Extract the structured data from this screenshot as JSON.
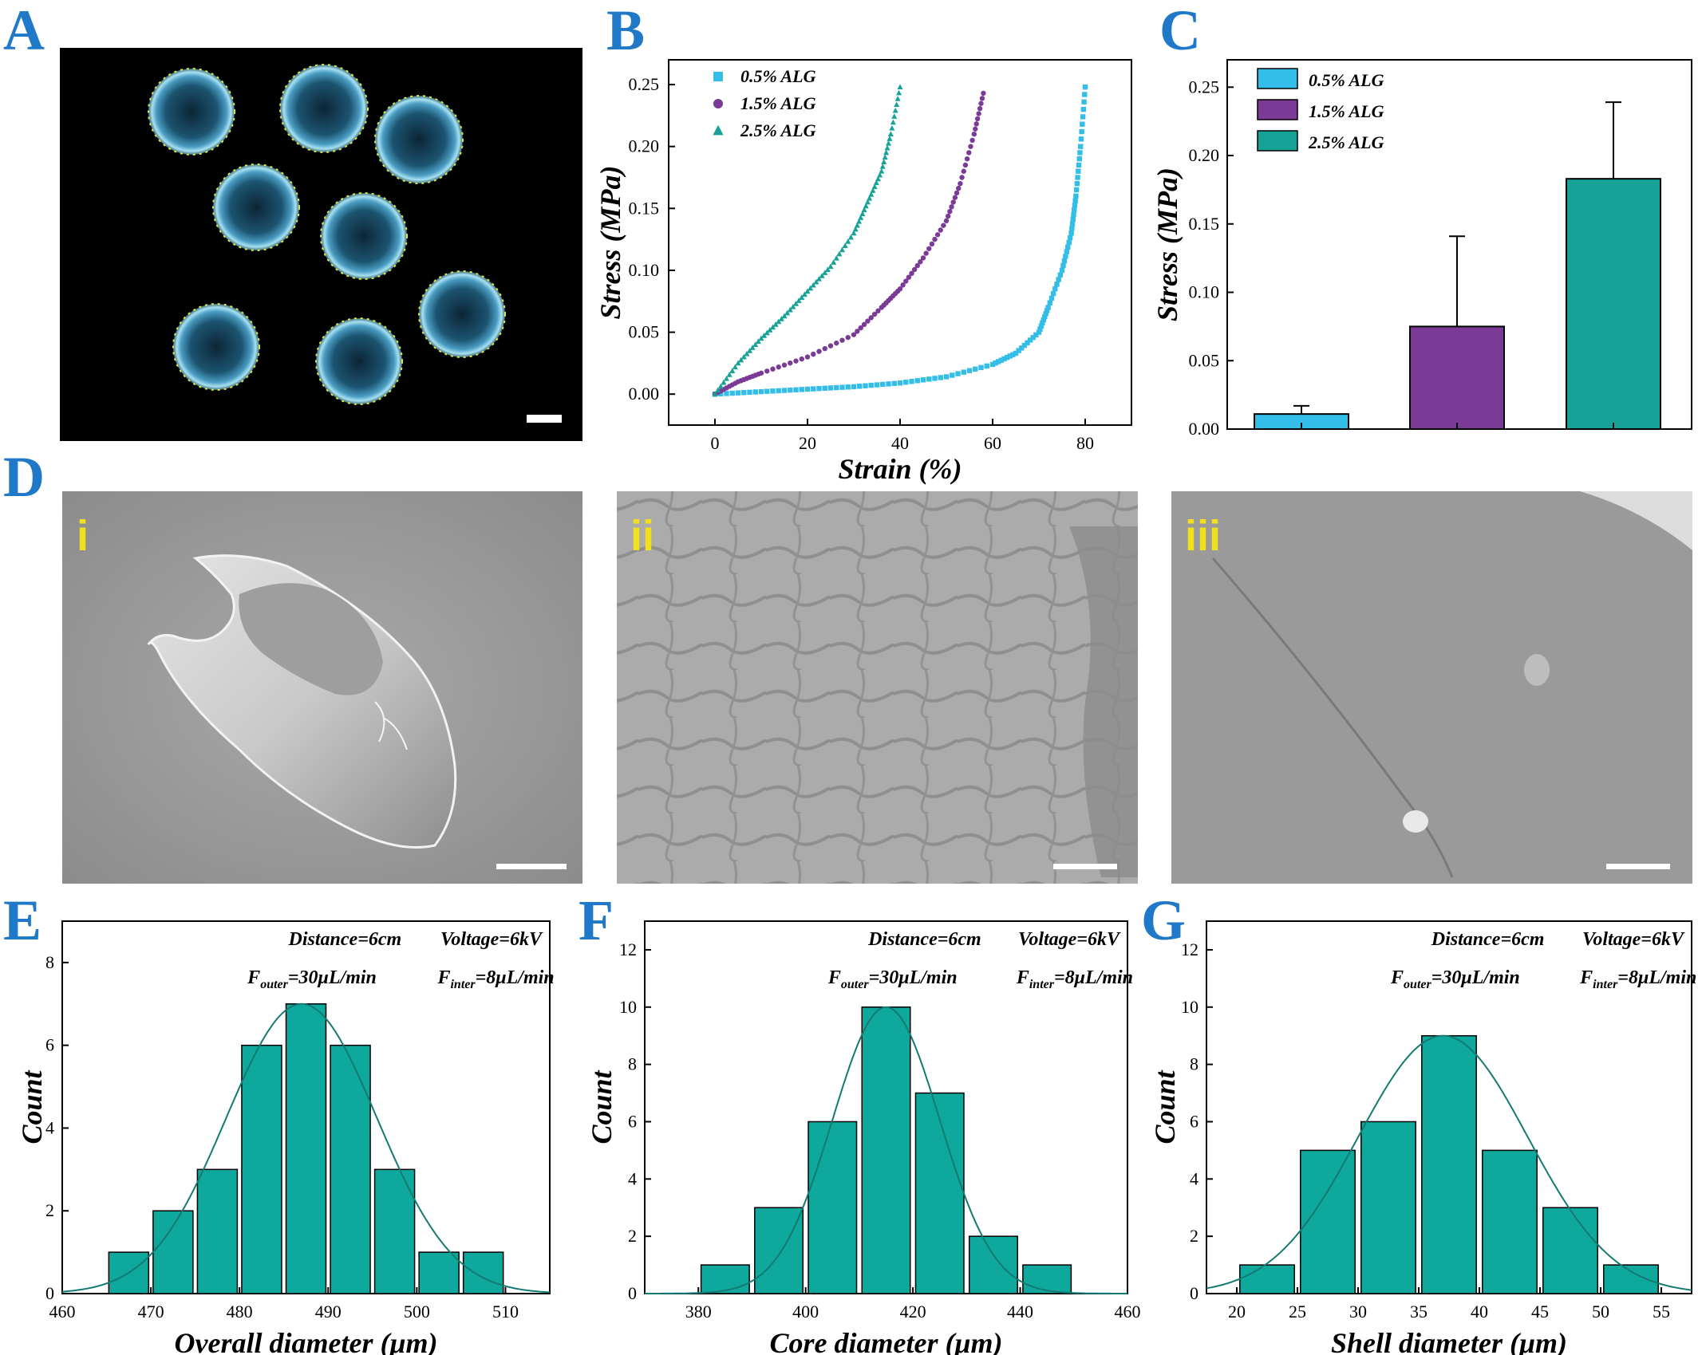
{
  "panels": {
    "A": "A",
    "B": "B",
    "C": "C",
    "D": "D",
    "E": "E",
    "F": "F",
    "G": "G"
  },
  "sem_labels": [
    "i",
    "ii",
    "iii"
  ],
  "colors": {
    "c05": "#33bde9",
    "c15": "#7b3a96",
    "c25": "#16a296",
    "hist": "#0fa89c",
    "curve": "#137a72",
    "letter": "#1f78c8",
    "sublabel": "#f1e11b"
  },
  "chart_data": [
    {
      "id": "B",
      "type": "scatter",
      "xlabel": "Strain (%)",
      "ylabel": "Stress (MPa)",
      "xlim": [
        -10,
        90
      ],
      "ylim": [
        -0.025,
        0.27
      ],
      "xticks": [
        0,
        20,
        40,
        60,
        80
      ],
      "yticks": [
        0.0,
        0.05,
        0.1,
        0.15,
        0.2,
        0.25
      ],
      "ytick_labels": [
        "0.00",
        "0.05",
        "0.10",
        "0.15",
        "0.20",
        "0.25"
      ],
      "legend_position": "top-left",
      "series": [
        {
          "name": "0.5% ALG",
          "marker": "square",
          "x": [
            0,
            10,
            20,
            30,
            40,
            50,
            60,
            65,
            70,
            72,
            75,
            77,
            78,
            79,
            80
          ],
          "y": [
            0,
            0.002,
            0.004,
            0.006,
            0.009,
            0.014,
            0.024,
            0.033,
            0.05,
            0.07,
            0.1,
            0.13,
            0.16,
            0.2,
            0.248
          ]
        },
        {
          "name": "1.5% ALG",
          "marker": "circle",
          "x": [
            0,
            5,
            10,
            20,
            30,
            36,
            40,
            45,
            50,
            53,
            56,
            58
          ],
          "y": [
            0,
            0.01,
            0.017,
            0.03,
            0.048,
            0.07,
            0.085,
            0.11,
            0.14,
            0.17,
            0.21,
            0.243
          ]
        },
        {
          "name": "2.5% ALG",
          "marker": "triangle",
          "x": [
            0,
            5,
            10,
            15,
            20,
            25,
            30,
            33,
            36,
            38,
            40
          ],
          "y": [
            0,
            0.025,
            0.045,
            0.063,
            0.083,
            0.103,
            0.13,
            0.155,
            0.18,
            0.21,
            0.248
          ]
        }
      ]
    },
    {
      "id": "C",
      "type": "bar",
      "ylabel": "Stress (MPa)",
      "ylim": [
        0,
        0.27
      ],
      "yticks": [
        0.0,
        0.05,
        0.1,
        0.15,
        0.2,
        0.25
      ],
      "ytick_labels": [
        "0.00",
        "0.05",
        "0.10",
        "0.15",
        "0.20",
        "0.25"
      ],
      "legend_position": "top-left",
      "categories": [
        "0.5% ALG",
        "1.5% ALG",
        "2.5% ALG"
      ],
      "values": [
        0.011,
        0.075,
        0.183
      ],
      "errors": [
        0.006,
        0.066,
        0.056
      ]
    },
    {
      "id": "E",
      "type": "bar",
      "xlabel": "Overall diameter (μm)",
      "ylabel": "Count",
      "xlim": [
        460,
        515
      ],
      "ylim": [
        0,
        9
      ],
      "xticks": [
        460,
        470,
        480,
        490,
        500,
        510
      ],
      "yticks": [
        0,
        2,
        4,
        6,
        8
      ],
      "bin_centers": [
        467.5,
        472.5,
        477.5,
        482.5,
        487.5,
        492.5,
        497.5,
        502.5,
        507.5
      ],
      "bin_width": 5,
      "values": [
        1,
        2,
        3,
        6,
        7,
        6,
        3,
        1,
        1
      ],
      "fit": {
        "mean": 487,
        "sd": 8.5,
        "peak": 7.0
      },
      "notes": {
        "distance": "Distance=6cm",
        "voltage": "Voltage=6kV",
        "f_outer_main": "F",
        "f_outer_sub": "outer",
        "f_outer_val": "=30μL/min",
        "f_inter_main": "F",
        "f_inter_sub": "inter",
        "f_inter_val": "=8μL/min"
      }
    },
    {
      "id": "F",
      "type": "bar",
      "xlabel": "Core diameter (μm)",
      "ylabel": "Count",
      "xlim": [
        370,
        460
      ],
      "ylim": [
        0,
        13
      ],
      "xticks": [
        380,
        400,
        420,
        440,
        460
      ],
      "yticks": [
        0,
        2,
        4,
        6,
        8,
        10,
        12
      ],
      "bin_centers": [
        385,
        395,
        405,
        415,
        425,
        435,
        445
      ],
      "bin_width": 10,
      "values": [
        1,
        3,
        6,
        10,
        7,
        2,
        1
      ],
      "fit": {
        "mean": 415,
        "sd": 10,
        "peak": 10
      },
      "notes": {
        "distance": "Distance=6cm",
        "voltage": "Voltage=6kV",
        "f_outer_main": "F",
        "f_outer_sub": "outer",
        "f_outer_val": "=30μL/min",
        "f_inter_main": "F",
        "f_inter_sub": "inter",
        "f_inter_val": "=8μL/min"
      }
    },
    {
      "id": "G",
      "type": "bar",
      "xlabel": "Shell diameter (μm)",
      "ylabel": "Count",
      "xlim": [
        17.5,
        57.5
      ],
      "ylim": [
        0,
        13
      ],
      "xticks": [
        20,
        25,
        30,
        35,
        40,
        45,
        50,
        55
      ],
      "yticks": [
        0,
        2,
        4,
        6,
        8,
        10,
        12
      ],
      "bin_centers": [
        22.5,
        27.5,
        32.5,
        37.5,
        42.5,
        47.5,
        52.5
      ],
      "bin_width": 5,
      "values": [
        1,
        5,
        6,
        9,
        5,
        3,
        1
      ],
      "fit": {
        "mean": 37,
        "sd": 7,
        "peak": 9
      },
      "notes": {
        "distance": "Distance=6cm",
        "voltage": "Voltage=6kV",
        "f_outer_main": "F",
        "f_outer_sub": "outer",
        "f_outer_val": "=30μL/min",
        "f_inter_main": "F",
        "f_inter_sub": "inter",
        "f_inter_val": "=8μL/min"
      }
    }
  ]
}
